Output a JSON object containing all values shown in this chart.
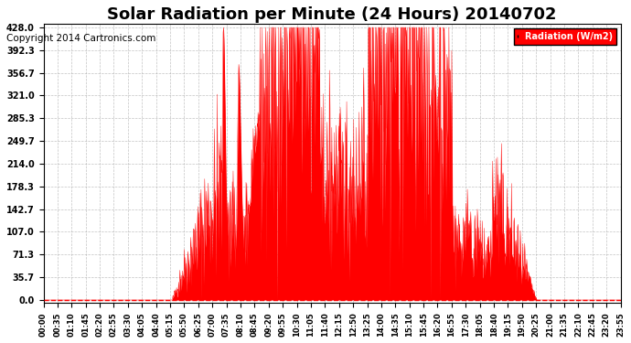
{
  "title": "Solar Radiation per Minute (24 Hours) 20140702",
  "copyright": "Copyright 2014 Cartronics.com",
  "legend_label": "Radiation (W/m2)",
  "yticks": [
    0.0,
    35.7,
    71.3,
    107.0,
    142.7,
    178.3,
    214.0,
    249.7,
    285.3,
    321.0,
    356.7,
    392.3,
    428.0
  ],
  "ymax": 428.0,
  "ymin": 0.0,
  "fill_color": "#FF0000",
  "line_color": "#FF0000",
  "background_color": "#FFFFFF",
  "grid_color": "#AAAAAA",
  "title_fontsize": 13,
  "copyright_fontsize": 7.5,
  "legend_bg": "#FF0000",
  "legend_text_color": "#FFFFFF",
  "xtick_labels": [
    "00:00",
    "00:35",
    "01:10",
    "01:45",
    "02:20",
    "02:55",
    "03:30",
    "04:05",
    "04:40",
    "05:15",
    "05:50",
    "06:25",
    "07:00",
    "07:35",
    "08:10",
    "08:45",
    "09:20",
    "09:55",
    "10:30",
    "11:05",
    "11:40",
    "12:15",
    "12:50",
    "13:25",
    "14:00",
    "14:35",
    "15:10",
    "15:45",
    "16:20",
    "16:55",
    "17:30",
    "18:05",
    "18:40",
    "19:15",
    "19:50",
    "20:25",
    "21:00",
    "21:35",
    "22:10",
    "22:45",
    "23:20",
    "23:55"
  ]
}
